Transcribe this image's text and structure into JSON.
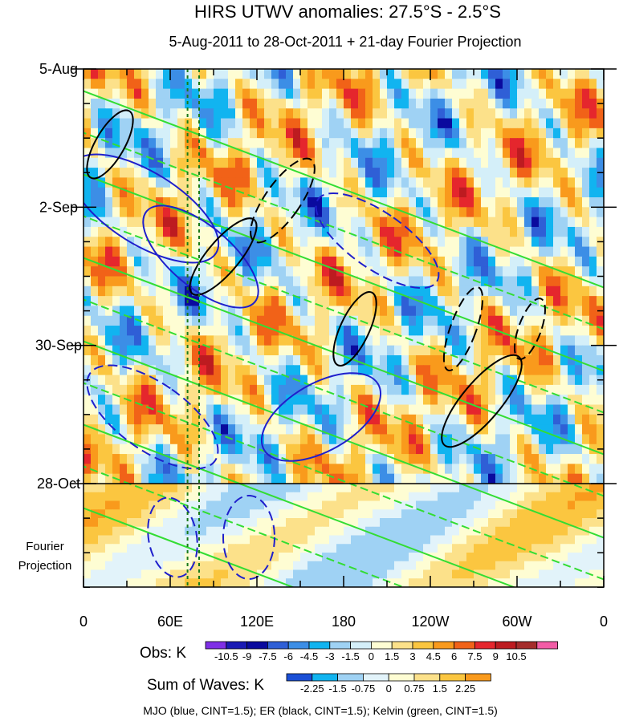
{
  "chart_data": {
    "type": "heatmap",
    "title": "HIRS UTWV anomalies: 27.5°S - 2.5°S",
    "subtitle": "5-Aug-2011 to 28-Oct-2011 + 21-day Fourier Projection",
    "y_tick_labels": [
      "5-Aug",
      "2-Sep",
      "30-Sep",
      "28-Oct"
    ],
    "y_ticks_days": [
      0,
      28,
      56,
      84
    ],
    "y_range_days": [
      0,
      105
    ],
    "projection_label": [
      "Fourier",
      "Projection"
    ],
    "x_tick_labels": [
      "0",
      "60E",
      "120E",
      "180",
      "120W",
      "60W",
      "0"
    ],
    "x_ticks_deg": [
      0,
      60,
      120,
      180,
      240,
      300,
      360
    ],
    "x_range_deg": [
      0,
      360
    ],
    "reference_lines_deg": [
      72,
      80
    ],
    "obs_colorbar": {
      "title": "Obs: K",
      "labels": [
        "-10.5",
        "-9",
        "-7.5",
        "-6",
        "-4.5",
        "-3",
        "-1.5",
        "0",
        "1.5",
        "3",
        "4.5",
        "6",
        "7.5",
        "9",
        "10.5"
      ],
      "colors": [
        "#7f2fe6",
        "#1a1ab4",
        "#0a0a9e",
        "#2f5fd6",
        "#3c8ee6",
        "#11b4f0",
        "#9fd2f4",
        "#d4eff9",
        "#fefdd3",
        "#fce18a",
        "#fbc640",
        "#f99a1c",
        "#f16218",
        "#e5262d",
        "#bd1b20",
        "#a52c2b",
        "#f25ca6"
      ]
    },
    "waves_colorbar": {
      "title": "Sum of Waves: K",
      "labels": [
        "-2.25",
        "-1.5",
        "-0.75",
        "0",
        "0.75",
        "1.5",
        "2.25"
      ],
      "colors": [
        "#1a4fd6",
        "#11b4f0",
        "#9fd2f4",
        "#e2f3fa",
        "#fefdd3",
        "#fce18a",
        "#fbc640",
        "#f99a1c"
      ]
    },
    "legend_note": "MJO (blue, CINT=1.5); ER (black, CINT=1.5); Kelvin (green, CINT=1.5)",
    "contour_colors": {
      "mjo": "#1f1fcc",
      "er": "#000000",
      "kelvin": "#33dd33"
    }
  }
}
